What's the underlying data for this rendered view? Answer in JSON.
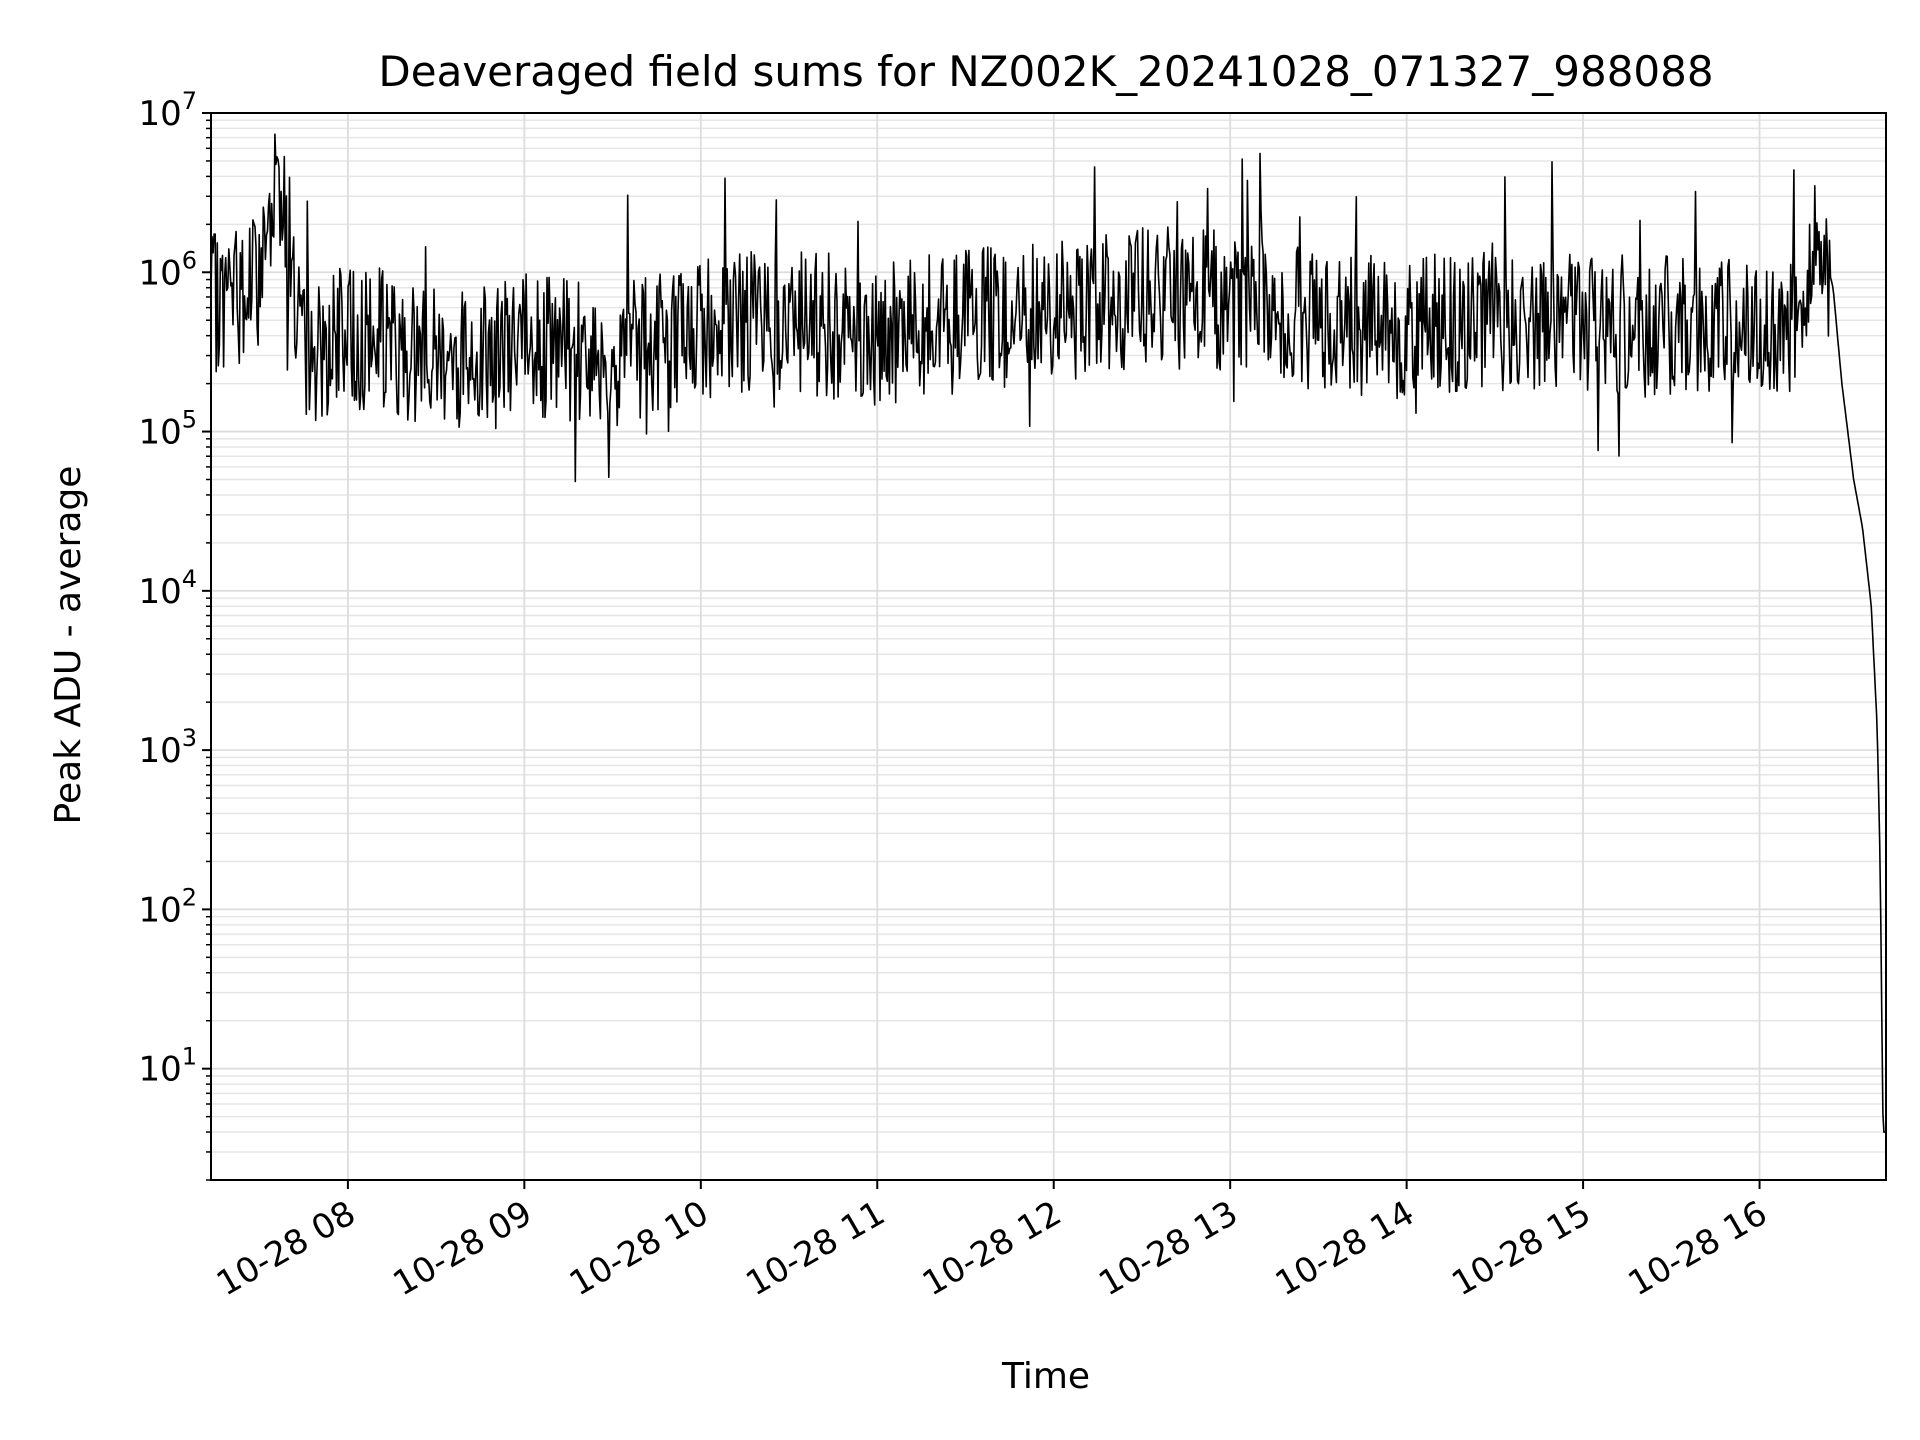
{
  "chart_data": {
    "type": "line",
    "title": "Deaveraged field sums for NZ002K_20241028_071327_988088",
    "xlabel": "Time",
    "ylabel": "Peak ADU - average",
    "yscale": "log",
    "ylim": [
      2,
      10000000
    ],
    "xlim": [
      "2024-10-28 07:13:27",
      "2024-10-28 16:43:00"
    ],
    "grid": true,
    "line_color": "#000000",
    "x_ticks": [
      {
        "at": "2024-10-28 08:00",
        "label": "10-28 08"
      },
      {
        "at": "2024-10-28 09:00",
        "label": "10-28 09"
      },
      {
        "at": "2024-10-28 10:00",
        "label": "10-28 10"
      },
      {
        "at": "2024-10-28 11:00",
        "label": "10-28 11"
      },
      {
        "at": "2024-10-28 12:00",
        "label": "10-28 12"
      },
      {
        "at": "2024-10-28 13:00",
        "label": "10-28 13"
      },
      {
        "at": "2024-10-28 14:00",
        "label": "10-28 14"
      },
      {
        "at": "2024-10-28 15:00",
        "label": "10-28 15"
      },
      {
        "at": "2024-10-28 16:00",
        "label": "10-28 16"
      }
    ],
    "y_ticks": [
      {
        "value": 10,
        "base": "10",
        "exp": "1"
      },
      {
        "value": 100,
        "base": "10",
        "exp": "2"
      },
      {
        "value": 1000,
        "base": "10",
        "exp": "3"
      },
      {
        "value": 10000,
        "base": "10",
        "exp": "4"
      },
      {
        "value": 100000,
        "base": "10",
        "exp": "5"
      },
      {
        "value": 1000000,
        "base": "10",
        "exp": "6"
      },
      {
        "value": 10000000,
        "base": "10",
        "exp": "7"
      }
    ],
    "series": [
      {
        "x": [
          "2024-10-28 07:13",
          "2024-10-28 07:20",
          "2024-10-28 07:30",
          "2024-10-28 07:36",
          "2024-10-28 07:45",
          "2024-10-28 08:00",
          "2024-10-28 08:30",
          "2024-10-28 09:00",
          "2024-10-28 09:30",
          "2024-10-28 10:00",
          "2024-10-28 10:30",
          "2024-10-28 11:00",
          "2024-10-28 11:30",
          "2024-10-28 12:00",
          "2024-10-28 12:30",
          "2024-10-28 13:00",
          "2024-10-28 13:30",
          "2024-10-28 14:00",
          "2024-10-28 14:30",
          "2024-10-28 15:00",
          "2024-10-28 15:30",
          "2024-10-28 16:00",
          "2024-10-28 16:15",
          "2024-10-28 16:20",
          "2024-10-28 16:25",
          "2024-10-28 16:28",
          "2024-10-28 16:32",
          "2024-10-28 16:35",
          "2024-10-28 16:38",
          "2024-10-28 16:40",
          "2024-10-28 16:41",
          "2024-10-28 16:42",
          "2024-10-28 16:43"
        ],
        "y": [
          600000,
          700000,
          900000,
          5500000,
          300000,
          400000,
          300000,
          350000,
          300000,
          450000,
          500000,
          400000,
          500000,
          550000,
          700000,
          650000,
          500000,
          450000,
          500000,
          500000,
          450000,
          450000,
          500000,
          1900000,
          800000,
          200000,
          50000,
          25000,
          8000,
          1400,
          200,
          4,
          4
        ]
      }
    ]
  }
}
